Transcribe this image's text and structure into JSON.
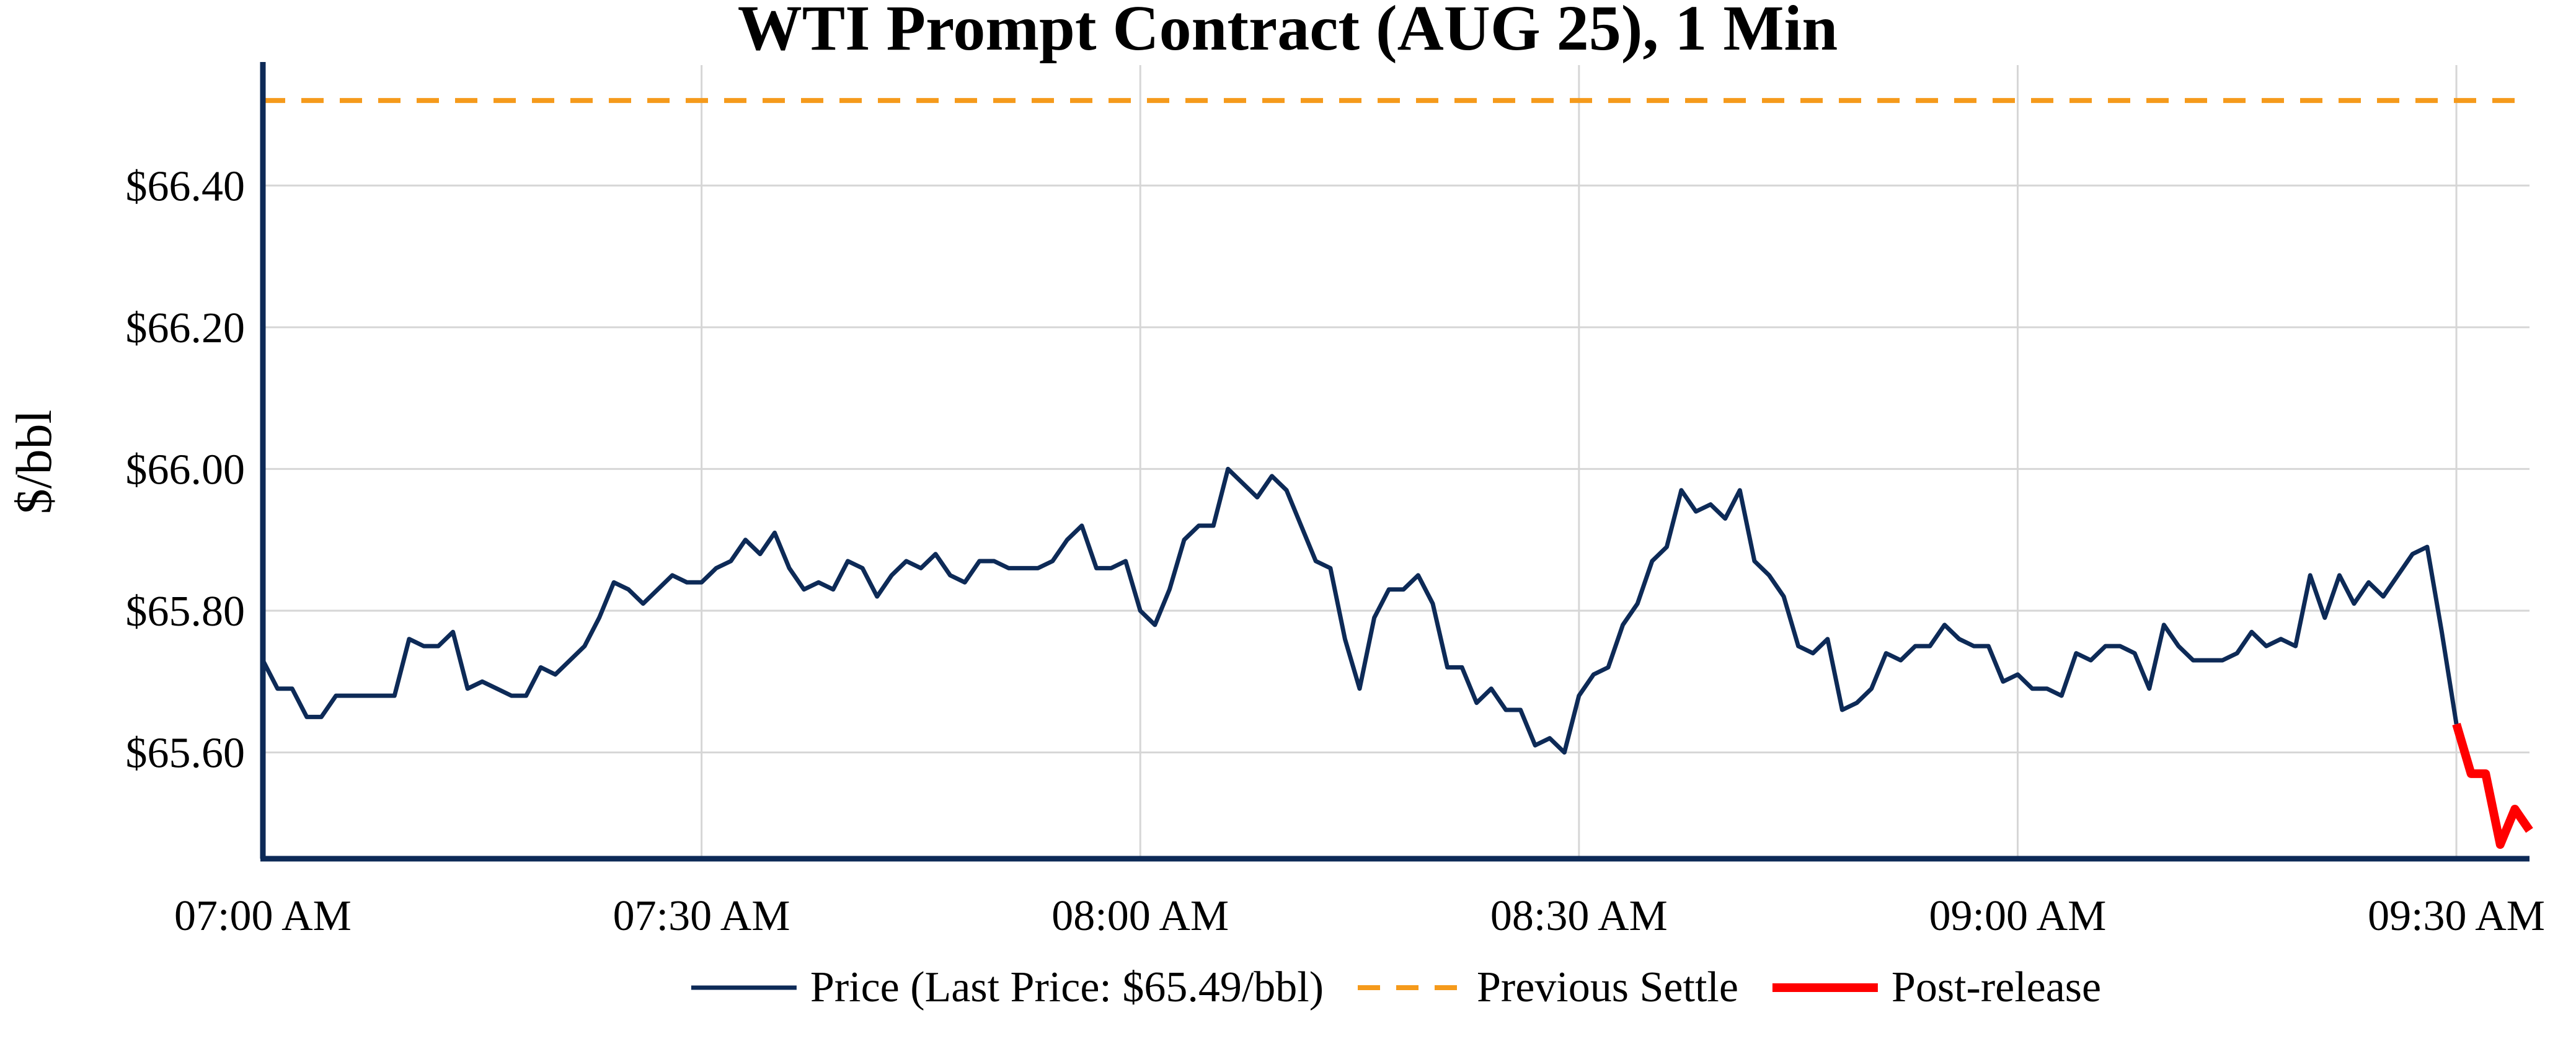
{
  "chart_data": {
    "type": "line",
    "title": "WTI Prompt Contract (AUG 25), 1 Min",
    "xlabel": "",
    "ylabel": "$/bbl",
    "x_unit": "minutes since 07:00 AM",
    "xlim": [
      0,
      155
    ],
    "ylim": [
      65.45,
      66.57
    ],
    "grid": true,
    "legend_position": "bottom-center",
    "x_ticks": [
      {
        "value": 0,
        "label": "07:00 AM"
      },
      {
        "value": 30,
        "label": "07:30 AM"
      },
      {
        "value": 60,
        "label": "08:00 AM"
      },
      {
        "value": 90,
        "label": "08:30 AM"
      },
      {
        "value": 120,
        "label": "09:00 AM"
      },
      {
        "value": 150,
        "label": "09:30 AM"
      }
    ],
    "y_ticks": [
      {
        "value": 65.6,
        "label": "$65.60"
      },
      {
        "value": 65.8,
        "label": "$65.80"
      },
      {
        "value": 66.0,
        "label": "$66.00"
      },
      {
        "value": 66.2,
        "label": "$66.20"
      },
      {
        "value": 66.4,
        "label": "$66.40"
      }
    ],
    "series": [
      {
        "name": "Price (Last Price: $65.49/bbl)",
        "color": "#0d2a57",
        "style": "solid",
        "x": [
          0,
          1,
          2,
          3,
          4,
          5,
          6,
          7,
          8,
          9,
          10,
          11,
          12,
          13,
          14,
          15,
          16,
          17,
          18,
          19,
          20,
          21,
          22,
          23,
          24,
          25,
          26,
          27,
          28,
          29,
          30,
          31,
          32,
          33,
          34,
          35,
          36,
          37,
          38,
          39,
          40,
          41,
          42,
          43,
          44,
          45,
          46,
          47,
          48,
          49,
          50,
          51,
          52,
          53,
          54,
          55,
          56,
          57,
          58,
          59,
          60,
          61,
          62,
          63,
          64,
          65,
          66,
          67,
          68,
          69,
          70,
          71,
          72,
          73,
          74,
          75,
          76,
          77,
          78,
          79,
          80,
          81,
          82,
          83,
          84,
          85,
          86,
          87,
          88,
          89,
          90,
          91,
          92,
          93,
          94,
          95,
          96,
          97,
          98,
          99,
          100,
          101,
          102,
          103,
          104,
          105,
          106,
          107,
          108,
          109,
          110,
          111,
          112,
          113,
          114,
          115,
          116,
          117,
          118,
          119,
          120,
          121,
          122,
          123,
          124,
          125,
          126,
          127,
          128,
          129,
          130,
          131,
          132,
          133,
          134,
          135,
          136,
          137,
          138,
          139,
          140,
          141,
          142,
          143,
          144,
          145,
          146,
          147,
          148,
          149,
          150
        ],
        "y": [
          65.73,
          65.69,
          65.69,
          65.65,
          65.65,
          65.68,
          65.68,
          65.68,
          65.68,
          65.68,
          65.76,
          65.75,
          65.75,
          65.77,
          65.69,
          65.7,
          65.69,
          65.68,
          65.68,
          65.72,
          65.71,
          65.73,
          65.75,
          65.79,
          65.84,
          65.83,
          65.81,
          65.83,
          65.85,
          65.84,
          65.84,
          65.86,
          65.87,
          65.9,
          65.88,
          65.91,
          65.86,
          65.83,
          65.84,
          65.83,
          65.87,
          65.86,
          65.82,
          65.85,
          65.87,
          65.86,
          65.88,
          65.85,
          65.84,
          65.87,
          65.87,
          65.86,
          65.86,
          65.86,
          65.87,
          65.9,
          65.92,
          65.86,
          65.86,
          65.87,
          65.8,
          65.78,
          65.83,
          65.9,
          65.92,
          65.92,
          66.0,
          65.98,
          65.96,
          65.99,
          65.97,
          65.92,
          65.87,
          65.86,
          65.76,
          65.69,
          65.79,
          65.83,
          65.83,
          65.85,
          65.81,
          65.72,
          65.72,
          65.67,
          65.69,
          65.66,
          65.66,
          65.61,
          65.62,
          65.6,
          65.68,
          65.71,
          65.72,
          65.78,
          65.81,
          65.87,
          65.89,
          65.97,
          65.94,
          65.95,
          65.93,
          65.97,
          65.87,
          65.85,
          65.82,
          65.75,
          65.74,
          65.76,
          65.66,
          65.67,
          65.69,
          65.74,
          65.73,
          65.75,
          65.75,
          65.78,
          65.76,
          65.75,
          65.75,
          65.7,
          65.71,
          65.69,
          65.69,
          65.68,
          65.74,
          65.73,
          65.75,
          65.75,
          65.74,
          65.69,
          65.78,
          65.75,
          65.73,
          65.73,
          65.73,
          65.74,
          65.77,
          65.75,
          65.76,
          65.75,
          65.85,
          65.79,
          65.85,
          65.81,
          65.84,
          65.82,
          65.85,
          65.88,
          65.89,
          65.77,
          65.64
        ]
      },
      {
        "name": "Previous Settle",
        "color": "#f59a1b",
        "style": "dashed",
        "x": [
          0,
          155
        ],
        "y": [
          66.52,
          66.52
        ]
      },
      {
        "name": "Post-release",
        "color": "#ff0000",
        "style": "solid-thick",
        "x": [
          150,
          151,
          152,
          153,
          154,
          155
        ],
        "y": [
          65.64,
          65.57,
          65.57,
          65.47,
          65.52,
          65.49
        ]
      }
    ],
    "legend": [
      {
        "label": "Price (Last Price: $65.49/bbl)",
        "color": "#0d2a57",
        "style": "solid"
      },
      {
        "label": "Previous Settle",
        "color": "#f59a1b",
        "style": "dashed"
      },
      {
        "label": "Post-release",
        "color": "#ff0000",
        "style": "solid-thick"
      }
    ]
  }
}
